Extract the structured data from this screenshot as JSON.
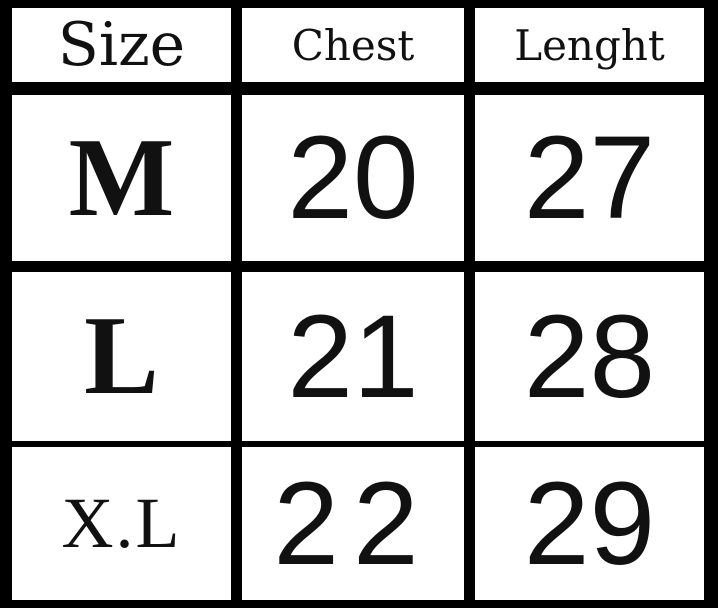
{
  "headers": [
    "Size",
    "Chest",
    "Lenght"
  ],
  "rows": [
    {
      "size": "M",
      "chest": "20",
      "length": "27"
    },
    {
      "size": "L",
      "chest": "21",
      "length": "28"
    },
    {
      "size": "X.L",
      "chest": "22",
      "length": "29"
    }
  ]
}
